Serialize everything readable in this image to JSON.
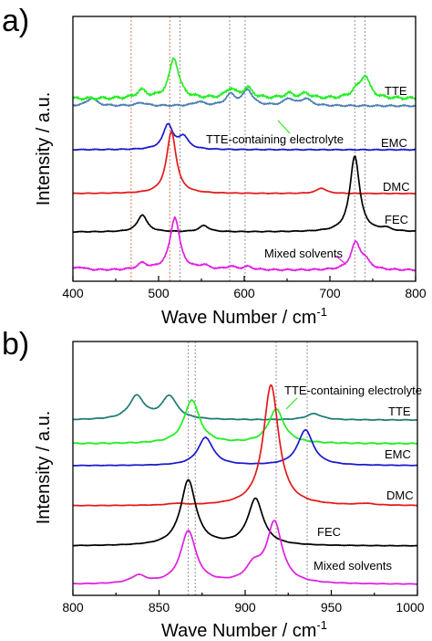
{
  "panels": [
    {
      "label": "a)",
      "xlabel": "Wave Number / cm",
      "xlabel_sup": "-1",
      "ylabel": "Intensity / a.u.",
      "x_ticks": [
        "400",
        "500",
        "600",
        "700",
        "800"
      ],
      "series_labels": [
        "TTE",
        "EMC",
        "DMC",
        "FEC"
      ],
      "annotations": [
        "TTE-containing electrolyte",
        "Mixed solvents"
      ]
    },
    {
      "label": "b)",
      "xlabel": "Wave Number / cm",
      "xlabel_sup": "-1",
      "ylabel": "Intensity / a.u.",
      "x_ticks": [
        "800",
        "850",
        "900",
        "950",
        "1000"
      ],
      "series_labels": [
        "TTE",
        "EMC",
        "DMC",
        "FEC"
      ],
      "annotations": [
        "TTE-containing electrolyte",
        "Mixed solvents"
      ]
    }
  ],
  "colors": {
    "TTE": "#4a7fb0",
    "TTE_b": "#1f7c74",
    "TTE-containing electrolyte": "#22ee22",
    "EMC": "#1a1acc",
    "DMC": "#e41a1a",
    "FEC": "#000000",
    "Mixed solvents": "#e020e0",
    "guide_orange": "#d96a3a",
    "guide_gray": "#888888"
  },
  "chart_data": [
    {
      "type": "line",
      "xlim": [
        400,
        800
      ],
      "grid": false,
      "y_ticks_labeled": false,
      "vertical_guides": [
        {
          "x": 468,
          "color": "guide_orange"
        },
        {
          "x": 513,
          "color": "guide_orange"
        },
        {
          "x": 525,
          "color": "guide_gray"
        },
        {
          "x": 583,
          "color": "guide_gray"
        },
        {
          "x": 601,
          "color": "guide_gray"
        },
        {
          "x": 729,
          "color": "guide_gray"
        },
        {
          "x": 741,
          "color": "guide_gray"
        }
      ],
      "series": [
        {
          "name": "TTE",
          "peaks": [
            [
              422,
              0.05
            ],
            [
              480,
              0.02
            ],
            [
              547,
              0.025
            ],
            [
              584,
              0.07
            ],
            [
              604,
              0.1
            ],
            [
              652,
              0.045
            ],
            [
              672,
              0.045
            ]
          ],
          "baseline": 0.0
        },
        {
          "name": "TTE-containing electrolyte",
          "peaks": [
            [
              480,
              0.05
            ],
            [
              518,
              0.26
            ],
            [
              584,
              0.06
            ],
            [
              604,
              0.065
            ],
            [
              652,
              0.03
            ],
            [
              672,
              0.03
            ],
            [
              730,
              0.04
            ],
            [
              741,
              0.14
            ]
          ],
          "baseline": 0.0
        },
        {
          "name": "EMC",
          "peaks": [
            [
              511,
              0.16
            ],
            [
              529,
              0.08
            ]
          ],
          "baseline": 0.0
        },
        {
          "name": "DMC",
          "peaks": [
            [
              515,
              0.4
            ],
            [
              690,
              0.035
            ]
          ],
          "baseline": 0.0
        },
        {
          "name": "FEC",
          "peaks": [
            [
              481,
              0.11
            ],
            [
              553,
              0.04
            ],
            [
              729,
              0.49
            ],
            [
              765,
              0.02
            ]
          ],
          "baseline": 0.0
        },
        {
          "name": "Mixed solvents",
          "peaks": [
            [
              408,
              0.02
            ],
            [
              481,
              0.04
            ],
            [
              519,
              0.34
            ],
            [
              553,
              0.025
            ],
            [
              584,
              0.02
            ],
            [
              604,
              0.02
            ],
            [
              730,
              0.17
            ],
            [
              741,
              0.05
            ]
          ],
          "baseline": 0.0
        }
      ]
    },
    {
      "type": "line",
      "xlim": [
        800,
        1000
      ],
      "grid": false,
      "y_ticks_labeled": false,
      "vertical_guides": [
        {
          "x": 867,
          "color": "guide_gray"
        },
        {
          "x": 871,
          "color": "guide_gray"
        },
        {
          "x": 918,
          "color": "guide_gray"
        },
        {
          "x": 936,
          "color": "guide_gray"
        }
      ],
      "series": [
        {
          "name": "TTE",
          "peaks": [
            [
              837,
              0.15
            ],
            [
              856,
              0.15
            ],
            [
              940,
              0.04
            ]
          ],
          "baseline": 0.0
        },
        {
          "name": "TTE-containing electrolyte",
          "peaks": [
            [
              869,
              0.28
            ],
            [
              918,
              0.22
            ]
          ],
          "baseline": 0.0
        },
        {
          "name": "EMC",
          "peaks": [
            [
              877,
              0.18
            ],
            [
              935,
              0.23
            ]
          ],
          "baseline": 0.0
        },
        {
          "name": "DMC",
          "peaks": [
            [
              860,
              0.01
            ],
            [
              915,
              0.78
            ],
            [
              970,
              0.01
            ]
          ],
          "baseline": 0.0
        },
        {
          "name": "FEC",
          "peaks": [
            [
              867,
              0.42
            ],
            [
              906,
              0.3
            ]
          ],
          "baseline": 0.0
        },
        {
          "name": "Mixed solvents",
          "peaks": [
            [
              838,
              0.05
            ],
            [
              867,
              0.34
            ],
            [
              905,
              0.1
            ],
            [
              917,
              0.39
            ]
          ],
          "baseline": 0.0
        }
      ]
    }
  ]
}
